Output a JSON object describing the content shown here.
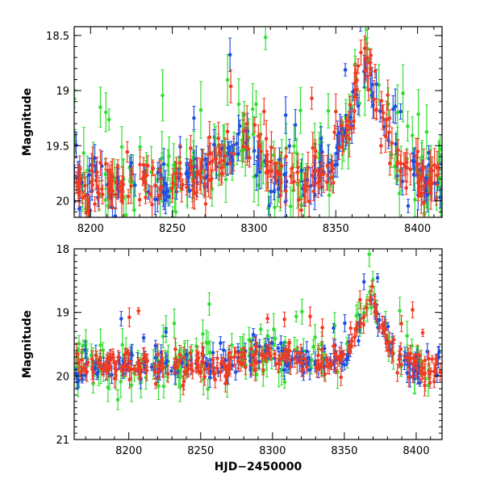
{
  "chart_data": [
    {
      "type": "scatter",
      "title": "",
      "xlabel": "",
      "ylabel": "Magnitude",
      "xlim": [
        8190,
        8415
      ],
      "ylim": [
        20.15,
        18.42
      ],
      "y_inverted": true,
      "xticks": [
        8200,
        8250,
        8300,
        8350,
        8400
      ],
      "xtick_labels": [
        "8200",
        "8250",
        "8300",
        "8350",
        "8400"
      ],
      "yticks": [
        18.5,
        19,
        19.5,
        20
      ],
      "ytick_labels": [
        "18.5",
        "19",
        "19.5",
        "20"
      ],
      "grid": false,
      "legend": "none",
      "series_colors": {
        "green": "#33dd33",
        "blue": "#1f4fe0",
        "red": "#f03a22"
      },
      "baseline": [
        [
          8190,
          19.85
        ],
        [
          8220,
          19.88
        ],
        [
          8250,
          19.85
        ],
        [
          8270,
          19.75
        ],
        [
          8282,
          19.55
        ],
        [
          8294,
          19.4
        ],
        [
          8302,
          19.58
        ],
        [
          8318,
          19.83
        ],
        [
          8334,
          19.8
        ],
        [
          8348,
          19.68
        ],
        [
          8358,
          19.28
        ],
        [
          8368,
          18.65
        ],
        [
          8378,
          19.3
        ],
        [
          8390,
          19.68
        ],
        [
          8400,
          19.8
        ],
        [
          8415,
          19.85
        ]
      ],
      "scatter_mag": 0.12,
      "points_per_series": {
        "green": 170,
        "blue": 190,
        "red": 260
      }
    },
    {
      "type": "scatter",
      "title": "",
      "xlabel": "HJD−2450000",
      "ylabel": "Magnitude",
      "xlim": [
        8162,
        8418
      ],
      "ylim": [
        21,
        18
      ],
      "y_inverted": true,
      "xticks": [
        8200,
        8250,
        8300,
        8350,
        8400
      ],
      "xtick_labels": [
        "8200",
        "8250",
        "8300",
        "8350",
        "8400"
      ],
      "yticks": [
        18,
        19,
        20,
        21
      ],
      "ytick_labels": [
        "18",
        "19",
        "20",
        "21"
      ],
      "grid": false,
      "legend": "none",
      "series_colors": {
        "green": "#33dd33",
        "blue": "#1f4fe0",
        "red": "#f03a22"
      },
      "baseline": [
        [
          8162,
          19.9
        ],
        [
          8180,
          19.82
        ],
        [
          8220,
          19.85
        ],
        [
          8250,
          19.82
        ],
        [
          8270,
          19.8
        ],
        [
          8285,
          19.72
        ],
        [
          8300,
          19.62
        ],
        [
          8320,
          19.8
        ],
        [
          8340,
          19.78
        ],
        [
          8352,
          19.62
        ],
        [
          8360,
          19.28
        ],
        [
          8368,
          18.75
        ],
        [
          8376,
          19.25
        ],
        [
          8388,
          19.72
        ],
        [
          8400,
          19.85
        ],
        [
          8418,
          19.88
        ]
      ],
      "scatter_mag": 0.12,
      "points_per_series": {
        "green": 180,
        "blue": 200,
        "red": 280
      }
    }
  ]
}
